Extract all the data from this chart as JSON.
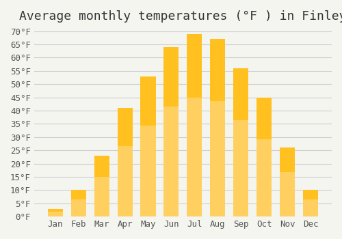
{
  "title": "Average monthly temperatures (°F ) in Finley",
  "months": [
    "Jan",
    "Feb",
    "Mar",
    "Apr",
    "May",
    "Jun",
    "Jul",
    "Aug",
    "Sep",
    "Oct",
    "Nov",
    "Dec"
  ],
  "values": [
    3,
    10,
    23,
    41,
    53,
    64,
    69,
    67,
    56,
    45,
    26,
    10
  ],
  "bar_color_top": "#FFC020",
  "bar_color_bottom": "#FFD060",
  "ylim": [
    0,
    70
  ],
  "yticks": [
    0,
    5,
    10,
    15,
    20,
    25,
    30,
    35,
    40,
    45,
    50,
    55,
    60,
    65,
    70
  ],
  "ytick_labels": [
    "0°F",
    "5°F",
    "10°F",
    "15°F",
    "20°F",
    "25°F",
    "30°F",
    "35°F",
    "40°F",
    "45°F",
    "50°F",
    "55°F",
    "60°F",
    "65°F",
    "70°F"
  ],
  "background_color": "#F5F5F0",
  "grid_color": "#CCCCCC",
  "title_fontsize": 13,
  "tick_fontsize": 9,
  "font_family": "monospace"
}
